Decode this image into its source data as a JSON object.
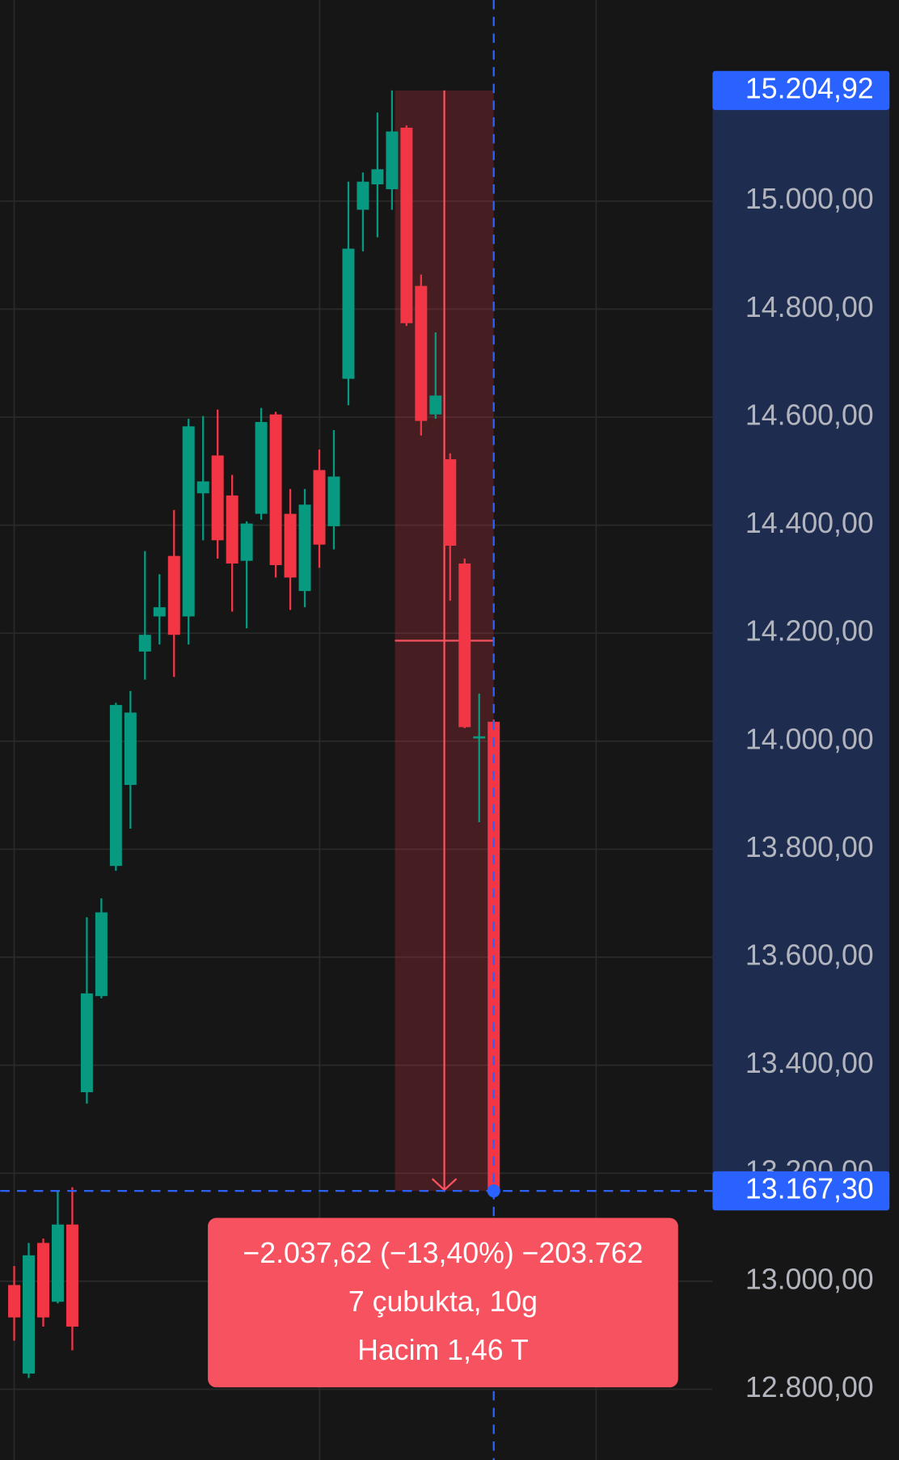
{
  "chart_data": {
    "type": "candlestick",
    "up_color": "#089981",
    "down_color": "#f23645",
    "grid": true,
    "ylim": [
      12669,
      15372.4
    ],
    "yticks": [
      {
        "value": 12800,
        "label": "12.800,00"
      },
      {
        "value": 13000,
        "label": "13.000,00"
      },
      {
        "value": 13200,
        "label": "13.200,00"
      },
      {
        "value": 13400,
        "label": "13.400,00"
      },
      {
        "value": 13600,
        "label": "13.600,00"
      },
      {
        "value": 13800,
        "label": "13.800,00"
      },
      {
        "value": 14000,
        "label": "14.000,00"
      },
      {
        "value": 14200,
        "label": "14.200,00"
      },
      {
        "value": 14400,
        "label": "14.400,00"
      },
      {
        "value": 14600,
        "label": "14.600,00"
      },
      {
        "value": 14800,
        "label": "14.800,00"
      },
      {
        "value": 15000,
        "label": "15.000,00"
      }
    ],
    "open": [
      12993,
      12829,
      13071,
      12962,
      13105,
      13350,
      13528,
      13769,
      13919,
      14166,
      14231,
      14343,
      14231,
      14459,
      14529,
      14455,
      14334,
      14421,
      14605,
      14421,
      14278,
      14502,
      14398,
      14671,
      14984,
      15031,
      15022,
      15136,
      14843,
      14605,
      14522,
      14329,
      14005,
      14036
    ],
    "high": [
      13028,
      13071,
      13079,
      13166,
      13174,
      13674,
      13709,
      14071,
      14093,
      14352,
      14309,
      14428,
      14597,
      14602,
      14614,
      14493,
      14407,
      14617,
      14610,
      14467,
      14467,
      14540,
      14576,
      15036,
      15053,
      15164,
      15205,
      15140,
      14864,
      14757,
      14533,
      14338,
      14088,
      14040
    ],
    "low": [
      12890,
      12821,
      12916,
      12959,
      12872,
      13329,
      13524,
      13760,
      13838,
      14114,
      14179,
      14119,
      14179,
      14372,
      14338,
      14240,
      14209,
      14410,
      14303,
      14243,
      14248,
      14321,
      14355,
      14622,
      14907,
      14933,
      14984,
      14769,
      14566,
      14597,
      14260,
      14024,
      13850,
      13167.3
    ],
    "close": [
      12933,
      13048,
      12933,
      13105,
      12916,
      13533,
      13683,
      14067,
      14053,
      14197,
      14248,
      14197,
      14583,
      14481,
      14372,
      14329,
      14403,
      14591,
      14326,
      14303,
      14438,
      14364,
      14490,
      14912,
      15036,
      15059,
      15129,
      14774,
      14593,
      14640,
      14362,
      14026,
      14009,
      13167.3
    ],
    "measure_top": {
      "value": 15204.92,
      "label": "15.204,92"
    },
    "measure_bottom": {
      "value": 13167.3,
      "label": "13.167,30"
    },
    "change_label": "−2.037,62 (−13,40%) −203.762",
    "bars_label": "7 çubukta, 10g",
    "volume_label": "Hacim 1,46 T"
  }
}
